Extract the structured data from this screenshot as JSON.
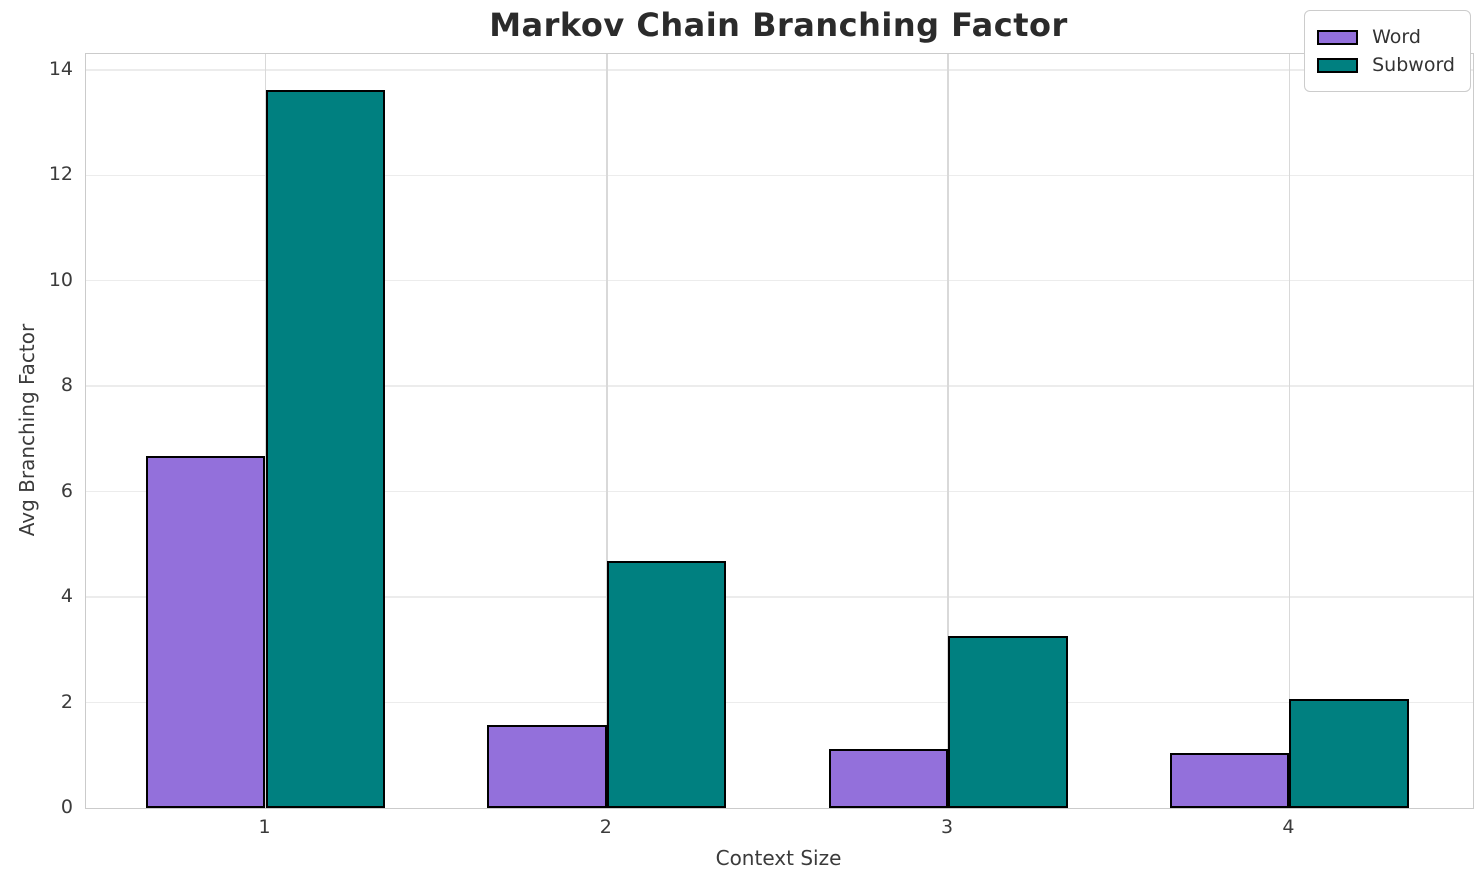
{
  "chart_data": {
    "type": "bar",
    "title": "Markov Chain Branching Factor",
    "xlabel": "Context Size",
    "ylabel": "Avg Branching Factor",
    "categories": [
      "1",
      "2",
      "3",
      "4"
    ],
    "series": [
      {
        "name": "Word",
        "color": "#9370DB",
        "values": [
          6.67,
          1.58,
          1.12,
          1.05
        ]
      },
      {
        "name": "Subword",
        "color": "#008080",
        "values": [
          13.62,
          4.69,
          3.26,
          2.06
        ]
      }
    ],
    "ylim": [
      0,
      14.3
    ],
    "yticks": [
      0,
      2,
      4,
      6,
      8,
      10,
      12,
      14
    ],
    "grid": true,
    "legend_position": "upper right",
    "bar_edge_color": "#000000",
    "bar_width_data_units": 0.35,
    "colors": {
      "background": "#ffffff",
      "grid_h": "#ececec",
      "grid_v": "#d9d9d9",
      "spine": "#cbcbcb",
      "title_text": "#2b2b2b",
      "tick_text": "#3b3b3b"
    }
  }
}
